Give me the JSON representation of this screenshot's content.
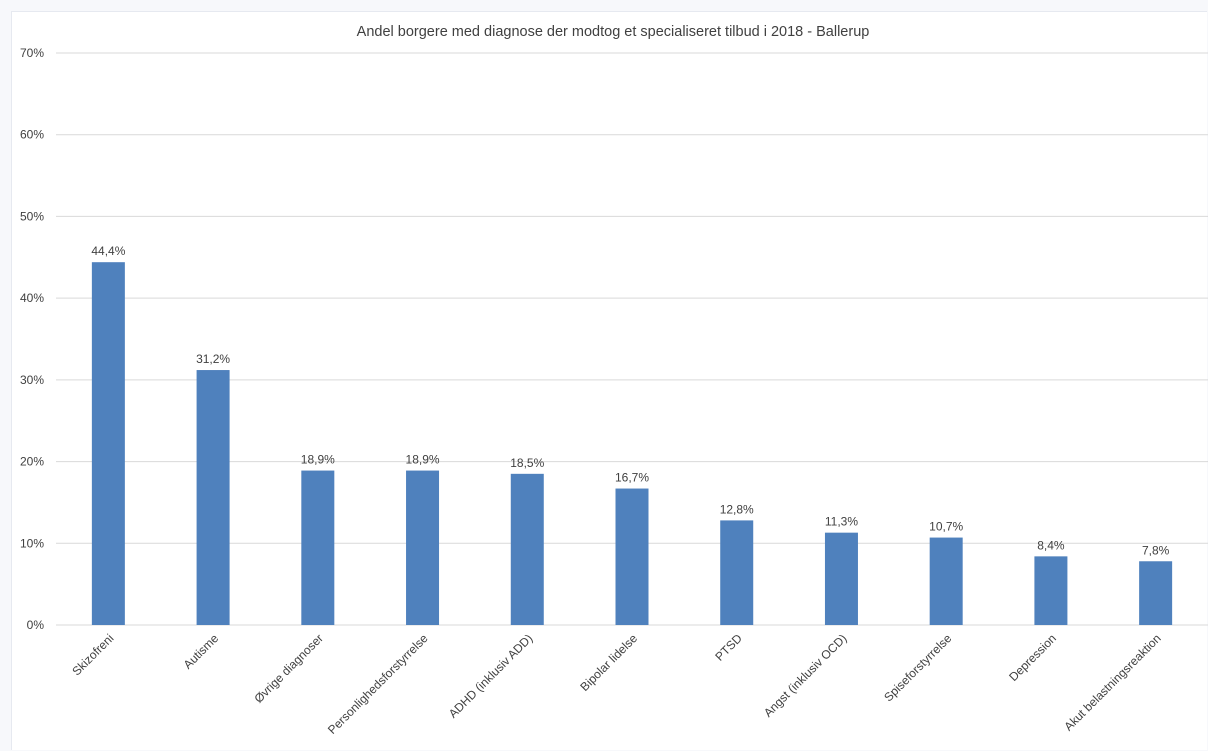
{
  "chart_data": {
    "type": "bar",
    "title": "Andel borgere med diagnose der modtog et specialiseret tilbud i 2018  - Ballerup",
    "xlabel": "",
    "ylabel": "",
    "categories": [
      "Skizofreni",
      "Autisme",
      "Øvrige diagnoser",
      "Personlighedsforstyrrelse",
      "ADHD (inklusiv ADD)",
      "Bipolar lidelse",
      "PTSD",
      "Angst (inklusiv OCD)",
      "Spiseforstyrrelse",
      "Depression",
      "Akut belastningsreaktion"
    ],
    "values": [
      44.4,
      31.2,
      18.9,
      18.9,
      18.5,
      16.7,
      12.8,
      11.3,
      10.7,
      8.4,
      7.8
    ],
    "data_labels": [
      "44,4%",
      "31,2%",
      "18,9%",
      "18,9%",
      "18,5%",
      "16,7%",
      "12,8%",
      "11,3%",
      "10,7%",
      "8,4%",
      "7,8%"
    ],
    "ylim": [
      0,
      70
    ],
    "yticks": [
      0,
      10,
      20,
      30,
      40,
      50,
      60,
      70
    ],
    "ytick_labels": [
      "0%",
      "10%",
      "20%",
      "30%",
      "40%",
      "50%",
      "60%",
      "70%"
    ],
    "grid": true,
    "legend": "none",
    "bar_color": "#4f81bd",
    "grid_color": "#d9d9d9"
  }
}
